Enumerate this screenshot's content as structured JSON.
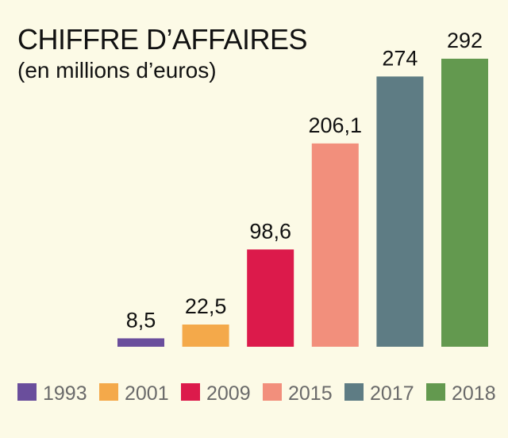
{
  "chart_data": {
    "type": "bar",
    "title": "CHIFFRE D’AFFAIRES",
    "subtitle": "(en millions d’euros)",
    "categories": [
      "1993",
      "2001",
      "2009",
      "2015",
      "2017",
      "2018"
    ],
    "values": [
      8.5,
      22.5,
      98.6,
      206.1,
      274,
      292
    ],
    "value_labels": [
      "8,5",
      "22,5",
      "98,6",
      "206,1",
      "274",
      "292"
    ],
    "colors": [
      "#6a4e9c",
      "#f4a94a",
      "#dc1a4b",
      "#f28f7c",
      "#5e7c84",
      "#63994f"
    ],
    "xlabel": "",
    "ylabel": "",
    "ylim": [
      0,
      292
    ],
    "grid": false,
    "legend": "bottom"
  }
}
